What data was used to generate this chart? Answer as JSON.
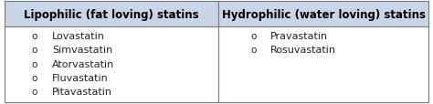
{
  "col1_header": "Lipophilic (fat loving) statins",
  "col2_header": "Hydrophilic (water loving) statins",
  "col1_items": [
    "Lovastatin",
    "Simvastatin",
    "Atorvastatin",
    "Fluvastatin",
    "Pitavastatin"
  ],
  "col2_items": [
    "Pravastatin",
    "Rosuvastatin"
  ],
  "header_bg": "#c8d4e8",
  "body_bg": "#ffffff",
  "border_color": "#7a7a7a",
  "header_fontsize": 8.5,
  "body_fontsize": 8.0,
  "header_text_color": "#000000",
  "body_text_color": "#222222",
  "fig_width": 4.74,
  "fig_height": 1.15,
  "col_split": 0.505
}
